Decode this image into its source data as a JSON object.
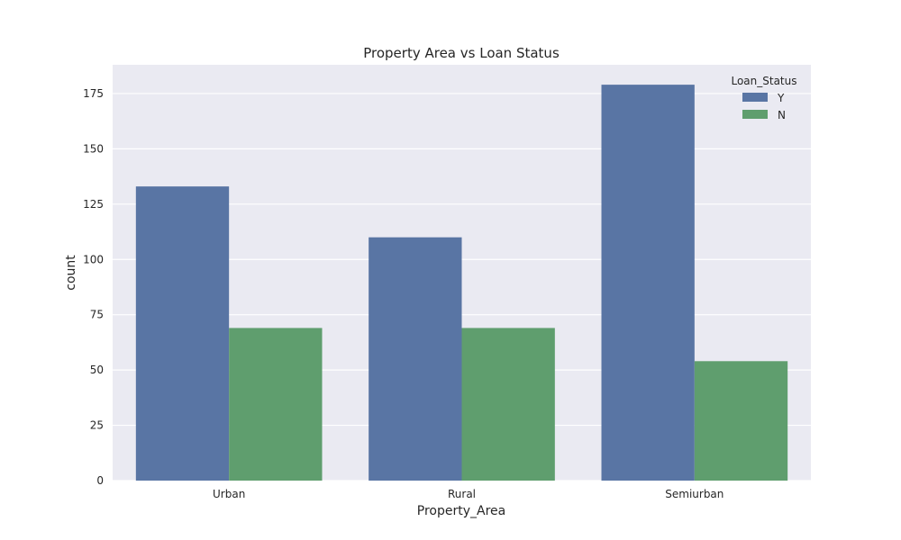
{
  "chart_data": {
    "type": "bar",
    "title": "Property Area vs Loan Status",
    "xlabel": "Property_Area",
    "ylabel": "count",
    "categories": [
      "Urban",
      "Rural",
      "Semiurban"
    ],
    "series": [
      {
        "name": "Y",
        "color": "#5975a4",
        "values": [
          133,
          110,
          179
        ]
      },
      {
        "name": "N",
        "color": "#5f9e6e",
        "values": [
          69,
          69,
          54
        ]
      }
    ],
    "ylim": [
      0,
      188
    ],
    "yticks": [
      0,
      25,
      50,
      75,
      100,
      125,
      150,
      175
    ],
    "grid": true,
    "legend": {
      "title": "Loan_Status",
      "position": "top-right"
    },
    "background": "#eaeaf2"
  }
}
